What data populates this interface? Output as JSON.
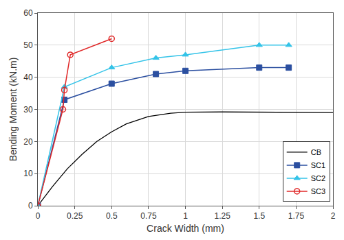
{
  "chart_data": {
    "type": "line",
    "x_label": "Crack Width (mm)",
    "y_label": "Bending Moment (kN.m)",
    "xlim": [
      0,
      2
    ],
    "xticks": [
      0,
      0.25,
      0.5,
      0.75,
      1,
      1.25,
      1.5,
      1.75,
      2
    ],
    "ylim": [
      0,
      60
    ],
    "yticks": [
      0,
      10,
      20,
      30,
      40,
      50,
      60
    ],
    "grid": true,
    "legend": "lower right",
    "series": [
      {
        "name": "CB",
        "color": "#000000",
        "marker": "none",
        "line_style": "solid",
        "x": [
          0,
          0.1,
          0.2,
          0.3,
          0.4,
          0.5,
          0.6,
          0.75,
          0.9,
          1,
          1.25,
          1.5,
          2
        ],
        "values": [
          0,
          6,
          11.5,
          16,
          20,
          23,
          25.5,
          27.8,
          28.8,
          29.1,
          29.2,
          29.1,
          29
        ]
      },
      {
        "name": "SC1",
        "color": "#2b4fa0",
        "marker": "square",
        "line_style": "solid",
        "x": [
          0,
          0.18,
          0.5,
          0.8,
          1,
          1.5,
          1.7
        ],
        "values": [
          0,
          33,
          38,
          41,
          42,
          43,
          43
        ]
      },
      {
        "name": "SC2",
        "color": "#33c3e8",
        "marker": "triangle-up",
        "line_style": "solid",
        "x": [
          0,
          0.18,
          0.5,
          0.8,
          1,
          1.5,
          1.7
        ],
        "values": [
          0,
          37,
          43,
          46,
          47,
          50,
          50
        ]
      },
      {
        "name": "SC3",
        "color": "#e02828",
        "marker": "circle-open",
        "line_style": "solid",
        "x": [
          0,
          0.17,
          0.18,
          0.22,
          0.5
        ],
        "values": [
          0,
          30,
          36,
          47,
          52
        ]
      }
    ]
  }
}
